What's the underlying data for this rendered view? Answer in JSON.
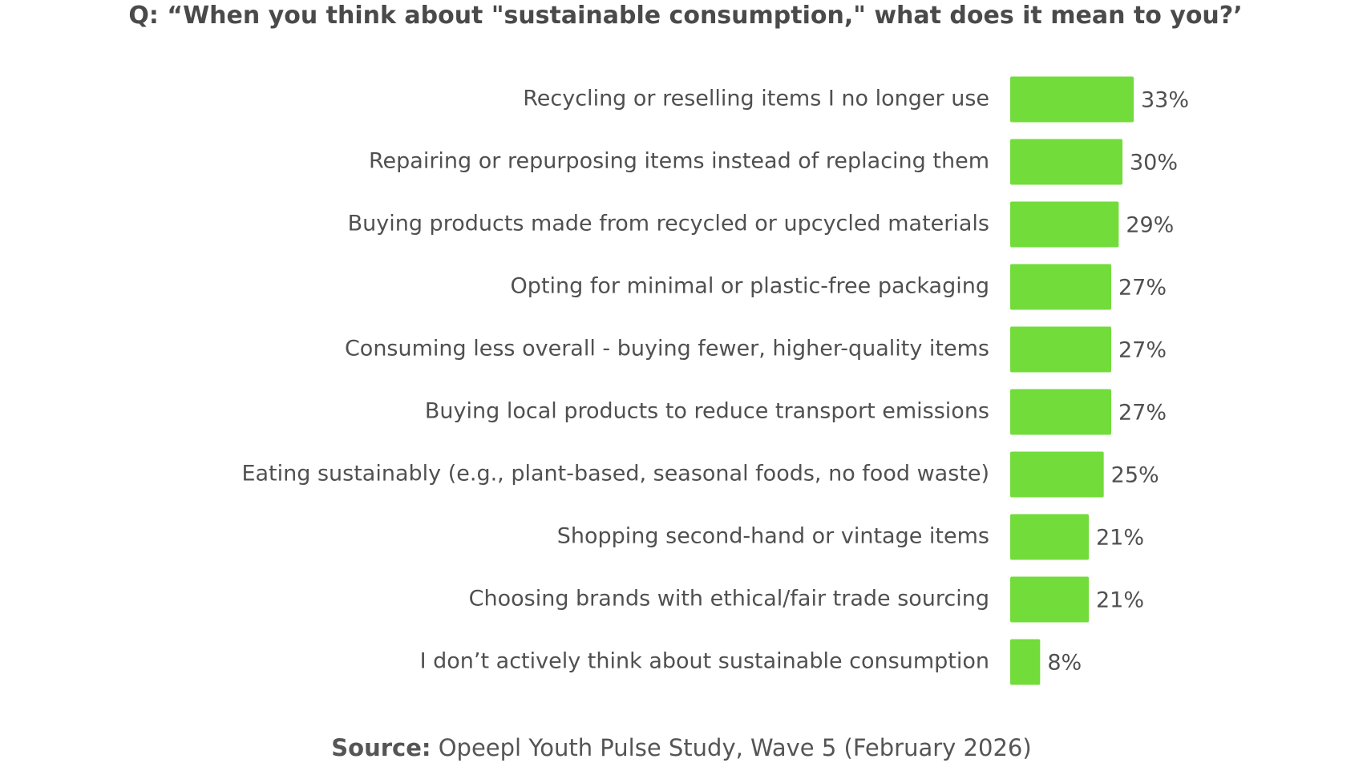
{
  "title": "Q: “When you think about \"sustainable consumption,\" what does it mean to you?’",
  "source": {
    "label": "Source:",
    "text": " Opeepl Youth Pulse Study, Wave 5 (February 2026)"
  },
  "colors": {
    "bar": "#72dc3b",
    "label_text": "#505050",
    "title_text": "#4a4a4a"
  },
  "chart_data": {
    "type": "bar",
    "orientation": "horizontal",
    "title": "Q: “When you think about \"sustainable consumption,\" what does it mean to you?’",
    "xlabel": "",
    "ylabel": "",
    "value_suffix": "%",
    "xlim": [
      0,
      33
    ],
    "grid": false,
    "legend": "none",
    "categories": [
      "Recycling or reselling items I no longer use",
      "Repairing or repurposing items instead of replacing them",
      "Buying products made from recycled or upcycled materials",
      "Opting for minimal or plastic-free packaging",
      "Consuming less overall - buying fewer, higher-quality items",
      "Buying local products to reduce transport emissions",
      "Eating sustainably (e.g., plant-based, seasonal foods, no food waste)",
      "Shopping second-hand or vintage items",
      "Choosing brands with ethical/fair trade sourcing",
      "I don’t actively think about sustainable consumption"
    ],
    "values": [
      33,
      30,
      29,
      27,
      27,
      27,
      25,
      21,
      21,
      8
    ],
    "data_labels": [
      "33%",
      "30%",
      "29%",
      "27%",
      "27%",
      "27%",
      "25%",
      "21%",
      "21%",
      "8%"
    ]
  }
}
